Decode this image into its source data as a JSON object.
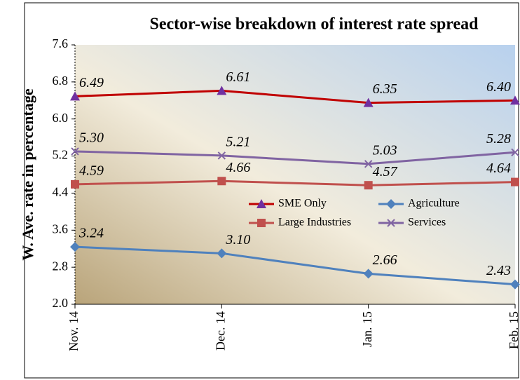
{
  "chart_data": {
    "type": "line",
    "title": "Sector-wise breakdown of interest rate spread",
    "ylabel": "W. Ave. rate in percentage",
    "categories": [
      "Nov. 14",
      "Dec. 14",
      "Jan. 15",
      "Feb. 15"
    ],
    "series": [
      {
        "name": "SME Only",
        "color": "#c00000",
        "marker": "triangle",
        "marker_color": "#7030a0",
        "values": [
          6.49,
          6.61,
          6.35,
          6.4
        ],
        "value_labels": [
          "6.49",
          "6.61",
          "6.35",
          "6.40"
        ]
      },
      {
        "name": "Agriculture",
        "color": "#4f81bd",
        "marker": "diamond",
        "marker_color": "#4f81bd",
        "values": [
          3.24,
          3.1,
          2.66,
          2.43
        ],
        "value_labels": [
          "3.24",
          "3.10",
          "2.66",
          "2.43"
        ]
      },
      {
        "name": "Large Industries",
        "color": "#c0504d",
        "marker": "square",
        "marker_color": "#c0504d",
        "values": [
          4.59,
          4.66,
          4.57,
          4.64
        ],
        "value_labels": [
          "4.59",
          "4.66",
          "4.57",
          "4.64"
        ]
      },
      {
        "name": "Services",
        "color": "#8064a2",
        "marker": "cross",
        "marker_color": "#8064a2",
        "values": [
          5.3,
          5.21,
          5.03,
          5.28
        ],
        "value_labels": [
          "5.30",
          "5.21",
          "5.03",
          "5.28"
        ]
      }
    ],
    "ylim": [
      2,
      7.6
    ],
    "yticks": [
      {
        "value": 2,
        "label": "2.0"
      },
      2.8,
      3.6,
      4.4,
      5.2,
      {
        "value": 6,
        "label": "6.0"
      },
      6.8,
      7.6
    ],
    "legend": "center-right",
    "grid": false
  }
}
